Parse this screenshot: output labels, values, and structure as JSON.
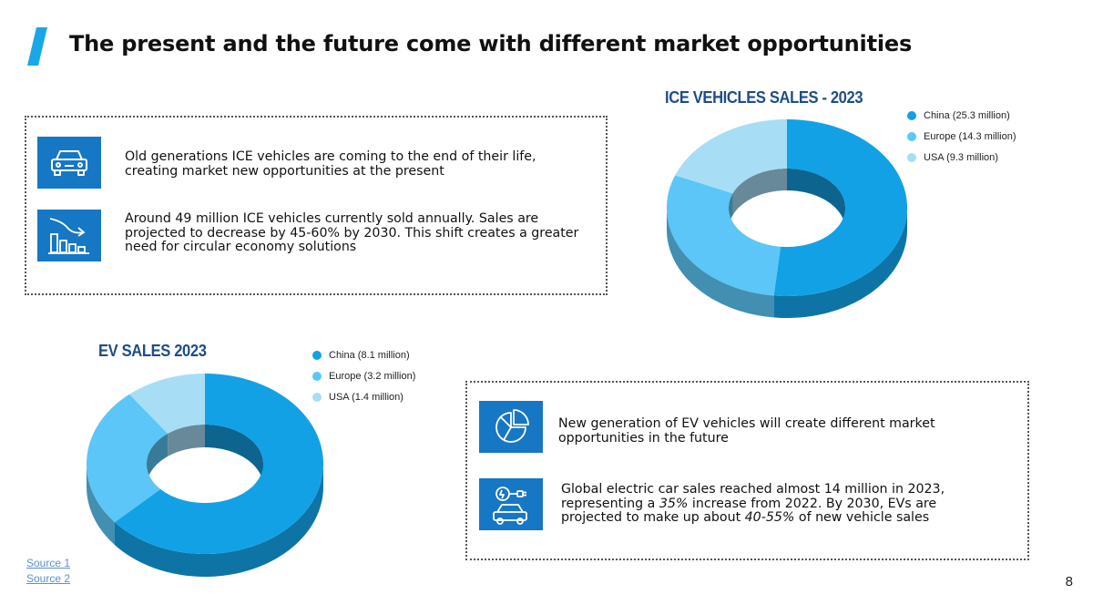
{
  "slide": {
    "title": "The present and the future come with different market opportunities",
    "page_number": "8",
    "accent_color": "#1aa7e8",
    "icon_bg_color": "#1677c4"
  },
  "top_panel": {
    "items": [
      {
        "icon": "car-icon",
        "text": "Old generations ICE vehicles are coming to the end of their life, creating market new opportunities at the present"
      },
      {
        "icon": "declining-bar-chart-icon",
        "text": "Around 49 million ICE vehicles currently sold annually. Sales are projected to decrease by 45-60% by 2030. This shift creates a greater need for circular economy solutions"
      }
    ]
  },
  "bottom_panel": {
    "items": [
      {
        "icon": "pie-chart-icon",
        "text": "New generation of EV vehicles will create different market opportunities in the future"
      },
      {
        "icon": "ev-charging-car-icon",
        "text_parts": [
          "Global electric car sales reached almost 14 million in 2023, representing a ",
          "35%",
          " increase from 2022.  By 2030, EVs are projected to make up about ",
          "40-55%",
          " of new vehicle sales"
        ]
      }
    ]
  },
  "sources": [
    "Source 1",
    "Source 2"
  ],
  "chart_data": [
    {
      "type": "pie",
      "variant": "3d-donut",
      "title": "ICE VEHICLES SALES - 2023",
      "unit": "million",
      "categories": [
        "China",
        "Europe",
        "USA"
      ],
      "values": [
        25.3,
        14.3,
        9.3
      ],
      "legend": [
        "China (25.3 million)",
        "Europe (14.3 million)",
        "USA (9.3 million)"
      ],
      "colors": [
        "#13a1e6",
        "#5bc6f7",
        "#a8ddf6"
      ],
      "legend_position": "right"
    },
    {
      "type": "pie",
      "variant": "3d-donut",
      "title": "EV SALES 2023",
      "unit": "million",
      "categories": [
        "China",
        "Europe",
        "USA"
      ],
      "values": [
        8.1,
        3.2,
        1.4
      ],
      "legend": [
        "China (8.1 million)",
        "Europe (3.2 million)",
        "USA (1.4 million)"
      ],
      "colors": [
        "#13a1e6",
        "#5bc6f7",
        "#a8ddf6"
      ],
      "legend_position": "right"
    }
  ]
}
